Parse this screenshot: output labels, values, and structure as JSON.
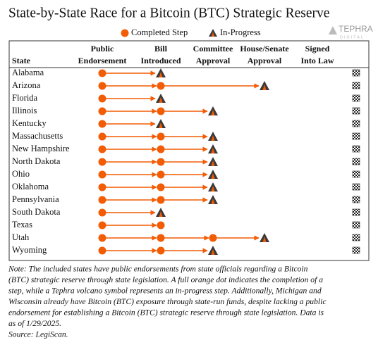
{
  "header": {
    "title": "State-by-State Race for a Bitcoin (BTC) Strategic Reserve",
    "logo": "TEPHRA",
    "logo_sub": "DIGITAL"
  },
  "legend": {
    "completed": "Completed Step",
    "in_progress": "In-Progress"
  },
  "columns": [
    "State",
    [
      "Public",
      "Endorsement"
    ],
    [
      "Bill",
      "Introduced"
    ],
    [
      "Committee",
      "Approval"
    ],
    [
      "House/Senate",
      "Approval"
    ],
    [
      "Signed",
      "Into Law"
    ]
  ],
  "rows": [
    {
      "state": "Alabama",
      "completed": [
        1
      ],
      "in_progress": 2
    },
    {
      "state": "Arizona",
      "completed": [
        1,
        2
      ],
      "in_progress": 4
    },
    {
      "state": "Florida",
      "completed": [
        1
      ],
      "in_progress": 2
    },
    {
      "state": "Illinois",
      "completed": [
        1,
        2
      ],
      "in_progress": 3
    },
    {
      "state": "Kentucky",
      "completed": [
        1
      ],
      "in_progress": 2
    },
    {
      "state": "Massachusetts",
      "completed": [
        1,
        2
      ],
      "in_progress": 3
    },
    {
      "state": "New Hampshire",
      "completed": [
        1,
        2
      ],
      "in_progress": 3
    },
    {
      "state": "North Dakota",
      "completed": [
        1,
        2
      ],
      "in_progress": 3
    },
    {
      "state": "Ohio",
      "completed": [
        1,
        2
      ],
      "in_progress": 3
    },
    {
      "state": "Oklahoma",
      "completed": [
        1,
        2
      ],
      "in_progress": 3
    },
    {
      "state": "Pennsylvania",
      "completed": [
        1,
        2
      ],
      "in_progress": 3
    },
    {
      "state": "South Dakota",
      "completed": [
        1
      ],
      "in_progress": 2
    },
    {
      "state": "Texas",
      "completed": [
        1,
        2
      ],
      "in_progress": null
    },
    {
      "state": "Utah",
      "completed": [
        1,
        2,
        3
      ],
      "in_progress": 4
    },
    {
      "state": "Wyoming",
      "completed": [
        1,
        2
      ],
      "in_progress": 3
    }
  ],
  "note": [
    "Note: The included states have public endorsements from state officials regarding a Bitcoin",
    "(BTC) strategic reserve through state legislation. A full orange dot indicates the completion of a",
    "step, while a Tephra volcano symbol represents an in-progress step. Additionally, Michigan and",
    "Wisconsin already have Bitcoin (BTC) exposure through state-run funds, despite lacking a public",
    "endorsement for establishing a Bitcoin (BTC) strategic reserve through state legislation. Data is",
    "as of 1/29/2025."
  ],
  "source": "Source: LegiScan."
}
